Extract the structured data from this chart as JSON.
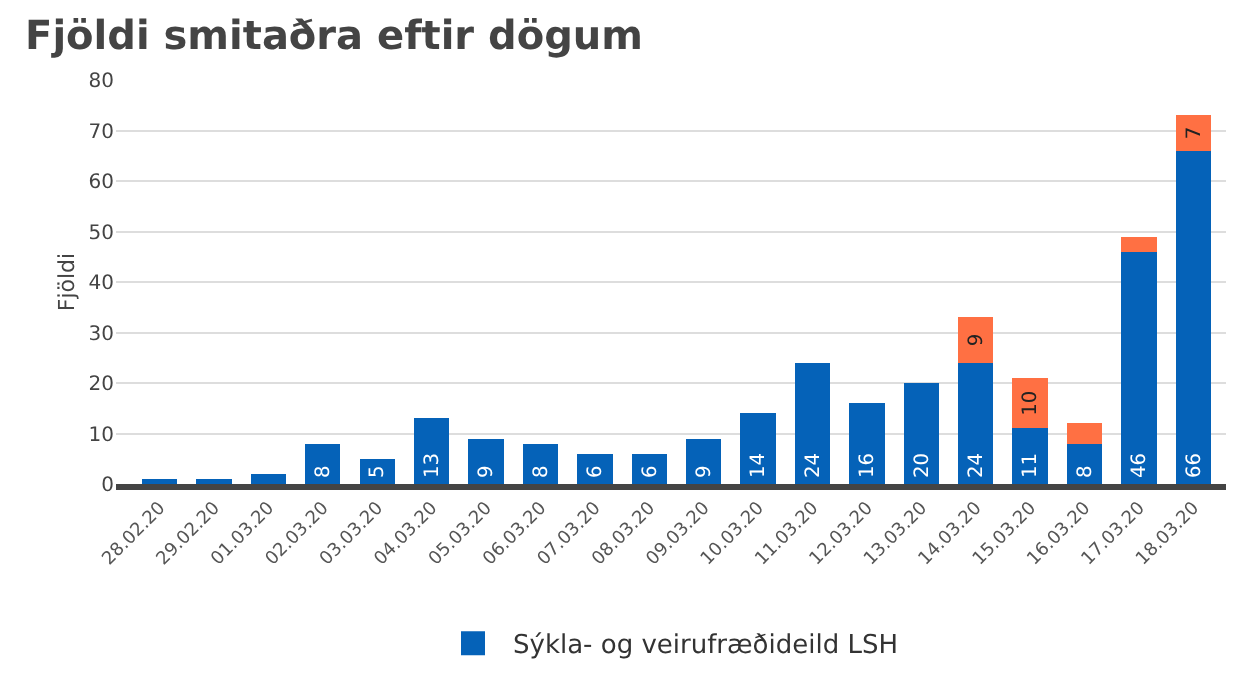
{
  "chart_data": {
    "type": "bar",
    "title": "Fjöldi smitaðra eftir dögum",
    "ylabel": "Fjöldi",
    "stacked": true,
    "categories": [
      "28.02.20",
      "29.02.20",
      "01.03.20",
      "02.03.20",
      "03.03.20",
      "04.03.20",
      "05.03.20",
      "06.03.20",
      "07.03.20",
      "08.03.20",
      "09.03.20",
      "10.03.20",
      "11.03.20",
      "12.03.20",
      "13.03.20",
      "14.03.20",
      "15.03.20",
      "16.03.20",
      "17.03.20",
      "18.03.20"
    ],
    "series": [
      {
        "name": "Sýkla- og veirufræðideild LSH",
        "color": "#0562b8",
        "values": [
          1,
          1,
          2,
          8,
          5,
          13,
          9,
          8,
          6,
          6,
          9,
          14,
          24,
          16,
          20,
          24,
          11,
          8,
          46,
          66
        ],
        "value_labels": [
          null,
          null,
          null,
          "8",
          "5",
          "13",
          "9",
          "8",
          "6",
          "6",
          "9",
          "14",
          "24",
          "16",
          "20",
          "24",
          "11",
          "8",
          "46",
          "66"
        ]
      },
      {
        "color": "#ff7043",
        "values": [
          null,
          null,
          null,
          null,
          null,
          null,
          null,
          null,
          null,
          null,
          null,
          null,
          null,
          null,
          null,
          9,
          10,
          4,
          3,
          7
        ],
        "value_labels": [
          null,
          null,
          null,
          null,
          null,
          null,
          null,
          null,
          null,
          null,
          null,
          null,
          null,
          null,
          null,
          "9",
          "10",
          null,
          null,
          "7"
        ]
      }
    ],
    "ylim": [
      0,
      80
    ],
    "yticks": [
      0,
      10,
      20,
      30,
      40,
      50,
      60,
      70,
      80
    ],
    "grid": "y",
    "legend": "bottom"
  }
}
